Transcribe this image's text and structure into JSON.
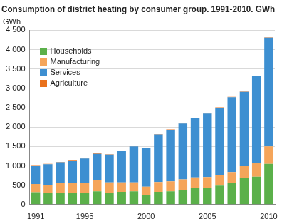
{
  "chart_data": {
    "type": "bar",
    "stacked": true,
    "title": "Consumption of district heating by consumer group. 1991-2010. GWh",
    "y_label": "GWh",
    "categories": [
      "1991",
      null,
      null,
      null,
      "1995",
      null,
      null,
      null,
      null,
      "2000",
      null,
      null,
      null,
      null,
      "2005",
      null,
      null,
      null,
      null,
      "2010"
    ],
    "series": [
      {
        "name": "Households",
        "color": "#5bb04a",
        "values": [
          320,
          300,
          300,
          300,
          310,
          340,
          310,
          330,
          340,
          250,
          330,
          340,
          380,
          420,
          430,
          490,
          550,
          680,
          720,
          1050
        ]
      },
      {
        "name": "Manufacturing",
        "color": "#f5a55a",
        "values": [
          210,
          210,
          250,
          260,
          250,
          300,
          260,
          240,
          230,
          210,
          250,
          260,
          270,
          280,
          280,
          280,
          290,
          320,
          350,
          450
        ]
      },
      {
        "name": "Services",
        "color": "#3d8fd1",
        "values": [
          470,
          530,
          540,
          580,
          630,
          670,
          720,
          810,
          930,
          1000,
          1230,
          1330,
          1440,
          1530,
          1640,
          1730,
          1930,
          1910,
          2240,
          2810
        ]
      },
      {
        "name": "Agriculture",
        "color": "#e9711c",
        "values": [
          20,
          10,
          10,
          10,
          10,
          10,
          10,
          10,
          10,
          10,
          10,
          10,
          10,
          10,
          10,
          10,
          10,
          10,
          10,
          10
        ]
      }
    ],
    "ylim": [
      0,
      4500
    ],
    "yticks": [
      0,
      500,
      {
        "value": 1000,
        "label": "1 000"
      },
      {
        "value": 1500,
        "label": "1 500"
      },
      {
        "value": 2000,
        "label": "2 000"
      },
      {
        "value": 2500,
        "label": "2 500"
      },
      {
        "value": 3000,
        "label": "3 000"
      },
      {
        "value": 3500,
        "label": "3 500"
      },
      {
        "value": 4000,
        "label": "4 000"
      },
      {
        "value": 4500,
        "label": "4 500"
      }
    ],
    "grid": true,
    "legend": "upper left"
  }
}
